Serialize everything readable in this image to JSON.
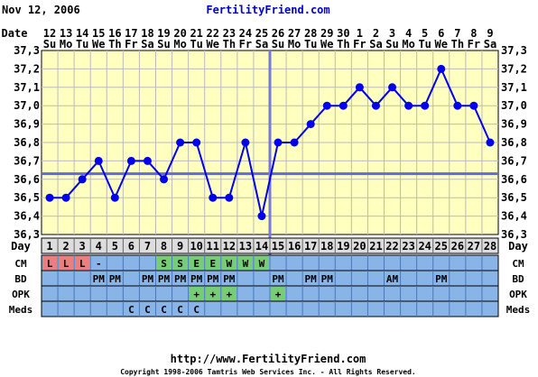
{
  "header": {
    "date_text": "Nov 12, 2006",
    "site_text": "FertilityFriend.com"
  },
  "footer": {
    "url_text": "http://www.FertilityFriend.com",
    "copyright_text": "Copyright 1998-2006 Tamtris Web Services Inc. - All Rights Reserved."
  },
  "colors": {
    "plot_bg": "#ffffc0",
    "series": "#0000ee",
    "coverline": "#6666dd",
    "ovulation_line": "#7777dd",
    "grid": "#bbbbbb",
    "row_bg": "#88b4e8",
    "row_bg_day": "#dddddd",
    "cm_red": "#e88080",
    "cm_green": "#77cc77",
    "header_blue": "#0000cc"
  },
  "chart_data": {
    "type": "line",
    "title": "",
    "xlabel": "Day",
    "ylabel": "",
    "ylim": [
      36.3,
      37.3
    ],
    "ytick_step": 0.1,
    "yticks": [
      "37,3",
      "37,2",
      "37,1",
      "37,0",
      "36,9",
      "36,8",
      "36,7",
      "36,6",
      "36,5",
      "36,4",
      "36,3"
    ],
    "date_row_label": "Date",
    "dates": [
      "12",
      "13",
      "14",
      "15",
      "16",
      "17",
      "18",
      "19",
      "20",
      "21",
      "22",
      "23",
      "24",
      "25",
      "26",
      "27",
      "28",
      "29",
      "30",
      "1",
      "2",
      "3",
      "4",
      "5",
      "6",
      "7",
      "8",
      "9"
    ],
    "weekdays": [
      "Su",
      "Mo",
      "Tu",
      "We",
      "Th",
      "Fr",
      "Sa",
      "Su",
      "Mo",
      "Tu",
      "We",
      "Th",
      "Fr",
      "Sa",
      "Su",
      "Mo",
      "Tu",
      "We",
      "Th",
      "Fr",
      "Sa",
      "Su",
      "Mo",
      "Tu",
      "We",
      "Th",
      "Fr",
      "Sa"
    ],
    "days": [
      1,
      2,
      3,
      4,
      5,
      6,
      7,
      8,
      9,
      10,
      11,
      12,
      13,
      14,
      15,
      16,
      17,
      18,
      19,
      20,
      21,
      22,
      23,
      24,
      25,
      26,
      27,
      28
    ],
    "series": [
      {
        "values": [
          36.5,
          36.5,
          36.6,
          36.7,
          36.5,
          36.7,
          36.7,
          36.6,
          36.8,
          36.8,
          36.5,
          36.5,
          36.8,
          36.4,
          36.8,
          36.8,
          36.9,
          37.0,
          37.0,
          37.1,
          37.0,
          37.1,
          37.0,
          37.0,
          37.2,
          37.0,
          37.0,
          36.8
        ]
      }
    ],
    "coverline": 36.63,
    "ovulation_day": 15,
    "rows": [
      {
        "label": "CM",
        "cells": [
          "L",
          "L",
          "L",
          "-",
          "",
          "",
          "",
          "S",
          "S",
          "E",
          "E",
          "W",
          "W",
          "W",
          "",
          "",
          "",
          "",
          "",
          "",
          "",
          "",
          "",
          "",
          "",
          "",
          "",
          ""
        ]
      },
      {
        "label": "BD",
        "cells": [
          "",
          "",
          "",
          "PM",
          "PM",
          "",
          "PM",
          "PM",
          "PM",
          "PM",
          "PM",
          "PM",
          "",
          "",
          "PM",
          "",
          "PM",
          "PM",
          "",
          "",
          "",
          "AM",
          "",
          "",
          "PM",
          "",
          "",
          ""
        ]
      },
      {
        "label": "OPK",
        "cells": [
          "",
          "",
          "",
          "",
          "",
          "",
          "",
          "",
          "",
          "+",
          "+",
          "+",
          "",
          "",
          "+",
          "",
          "",
          "",
          "",
          "",
          "",
          "",
          "",
          "",
          "",
          "",
          "",
          ""
        ]
      },
      {
        "label": "Meds",
        "cells": [
          "",
          "",
          "",
          "",
          "",
          "C",
          "C",
          "C",
          "C",
          "C",
          "",
          "",
          "",
          "",
          "",
          "",
          "",
          "",
          "",
          "",
          "",
          "",
          "",
          "",
          "",
          "",
          "",
          ""
        ]
      }
    ]
  }
}
